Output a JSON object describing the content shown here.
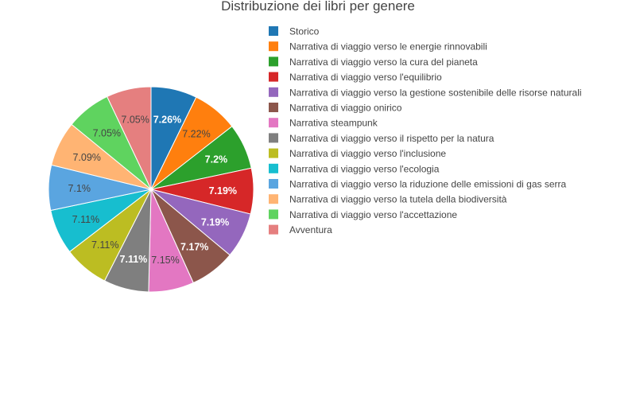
{
  "chart_data": {
    "type": "pie",
    "title": "Distribuzione dei libri per genere",
    "legend_position": "right",
    "slices": [
      {
        "label": "Storico",
        "value": 7.26,
        "text": "7.26%",
        "color": "#1f77b4"
      },
      {
        "label": "Narrativa di viaggio verso le energie rinnovabili",
        "value": 7.22,
        "text": "7.22%",
        "color": "#ff7f0e"
      },
      {
        "label": "Narrativa di viaggio verso la cura del pianeta",
        "value": 7.2,
        "text": "7.2%",
        "color": "#2ca02c"
      },
      {
        "label": "Narrativa di viaggio verso l'equilibrio",
        "value": 7.19,
        "text": "7.19%",
        "color": "#d62728"
      },
      {
        "label": "Narrativa di viaggio verso la gestione sostenibile delle risorse naturali",
        "value": 7.19,
        "text": "7.19%",
        "color": "#9467bd"
      },
      {
        "label": "Narrativa di viaggio onirico",
        "value": 7.17,
        "text": "7.17%",
        "color": "#8c564b"
      },
      {
        "label": "Narrativa steampunk",
        "value": 7.15,
        "text": "7.15%",
        "color": "#e377c2"
      },
      {
        "label": "Narrativa di viaggio verso il rispetto per la natura",
        "value": 7.11,
        "text": "7.11%",
        "color": "#7f7f7f"
      },
      {
        "label": "Narrativa di viaggio verso l'inclusione",
        "value": 7.11,
        "text": "7.11%",
        "color": "#bcbd22"
      },
      {
        "label": "Narrativa di viaggio verso l'ecologia",
        "value": 7.11,
        "text": "7.11%",
        "color": "#17becf"
      },
      {
        "label": "Narrativa di viaggio verso la riduzione delle emissioni di gas serra",
        "value": 7.1,
        "text": "7.1%",
        "color": "#5aa5e0"
      },
      {
        "label": "Narrativa di viaggio verso la tutela della biodiversità",
        "value": 7.09,
        "text": "7.09%",
        "color": "#ffb473"
      },
      {
        "label": "Narrativa di viaggio verso l'accettazione",
        "value": 7.05,
        "text": "7.05%",
        "color": "#5fd35f"
      },
      {
        "label": "Avventura",
        "value": 7.05,
        "text": "7.05%",
        "color": "#e57f7f"
      }
    ]
  }
}
